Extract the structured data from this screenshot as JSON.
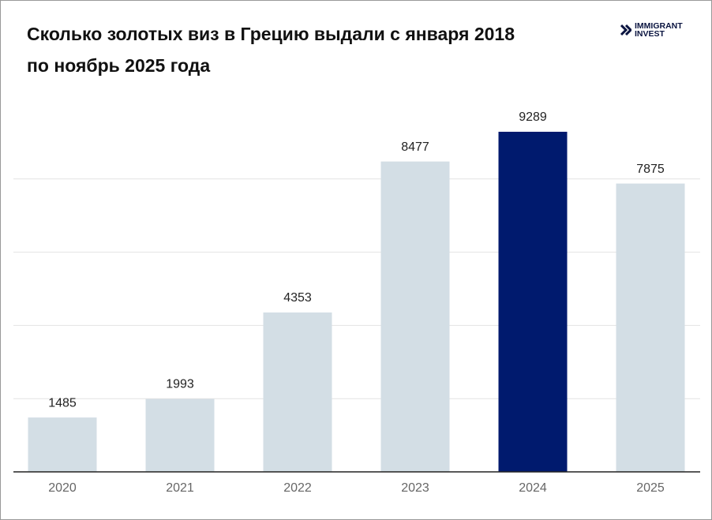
{
  "chart_data": {
    "type": "bar",
    "title": "Сколько золотых виз в Грецию выдали с января 2018 по ноябрь 2025 года",
    "logo": "IMMIGRANT INVEST",
    "categories": [
      "2020",
      "2021",
      "2022",
      "2023",
      "2024",
      "2025"
    ],
    "values": [
      1485,
      1993,
      4353,
      8477,
      9289,
      7875
    ],
    "colors": [
      "#d3dee5",
      "#d3dee5",
      "#d3dee5",
      "#d3dee5",
      "#001a6e",
      "#d3dee5"
    ],
    "ylim": [
      0,
      10000
    ],
    "yticks": [
      0,
      2000,
      4000,
      6000,
      8000
    ],
    "grid": true
  }
}
